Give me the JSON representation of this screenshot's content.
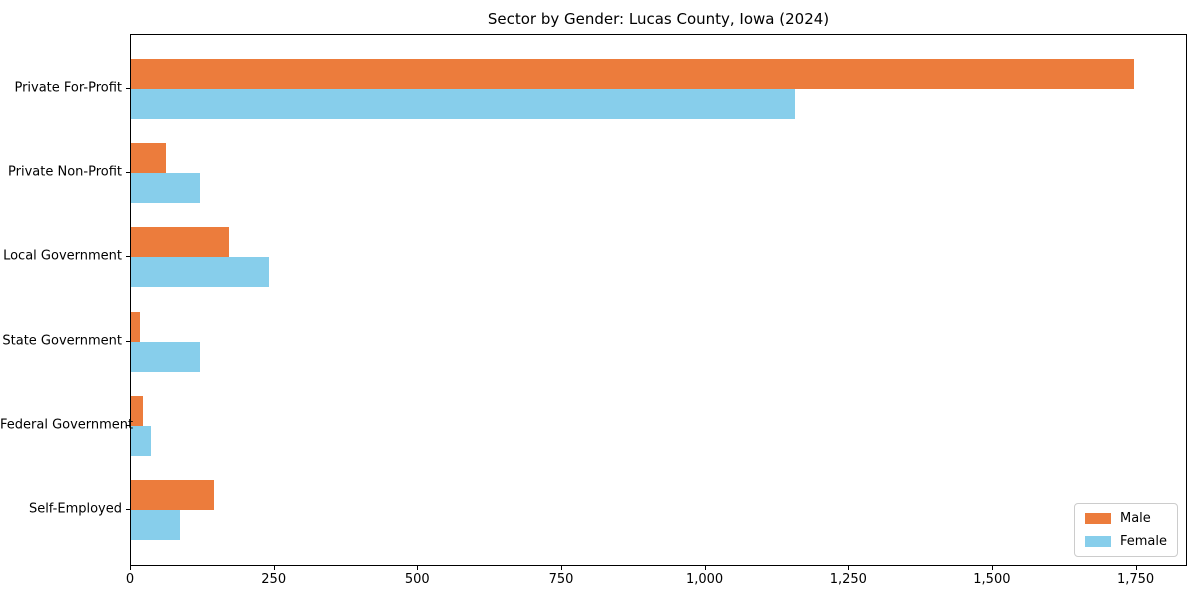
{
  "chart_data": {
    "type": "bar",
    "orientation": "horizontal",
    "title": "Sector by Gender: Lucas County, Iowa (2024)",
    "categories": [
      "Private For-Profit",
      "Private Non-Profit",
      "Local Government",
      "State Government",
      "Federal Government",
      "Self-Employed"
    ],
    "series": [
      {
        "name": "Male",
        "color": "#EC7C3C",
        "values": [
          1745,
          60,
          170,
          15,
          20,
          145
        ]
      },
      {
        "name": "Female",
        "color": "#87CEEB",
        "values": [
          1155,
          120,
          240,
          120,
          35,
          85
        ]
      }
    ],
    "xlabel": "",
    "ylabel": "",
    "xlim": [
      0,
      1836
    ],
    "xticks": [
      {
        "value": 0,
        "label": "0"
      },
      {
        "value": 250,
        "label": "250"
      },
      {
        "value": 500,
        "label": "500"
      },
      {
        "value": 750,
        "label": "750"
      },
      {
        "value": 1000,
        "label": "1,000"
      },
      {
        "value": 1250,
        "label": "1,250"
      },
      {
        "value": 1500,
        "label": "1,500"
      },
      {
        "value": 1750,
        "label": "1,750"
      }
    ],
    "grid": false,
    "legend_position": "lower right",
    "plot_border_color": "#000000",
    "background_color": "#ffffff"
  }
}
